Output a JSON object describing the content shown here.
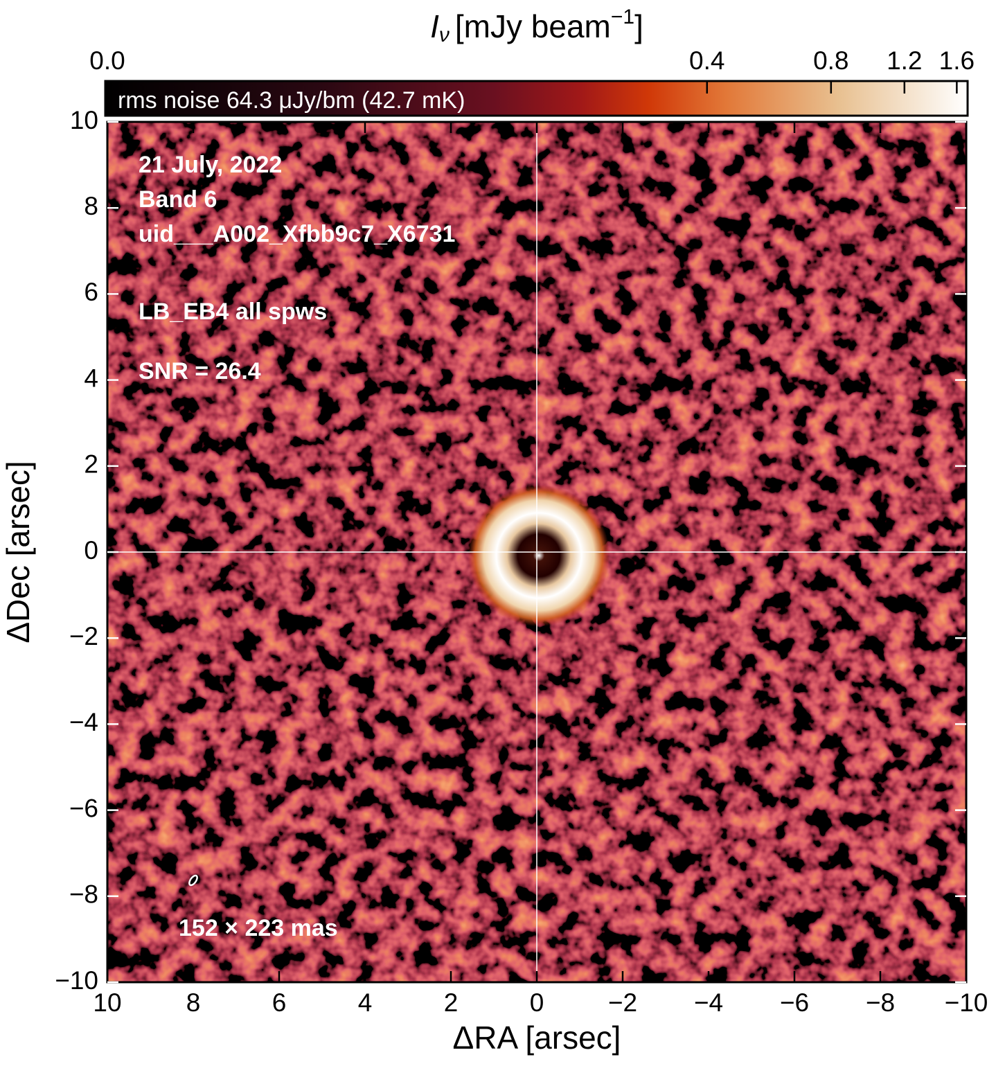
{
  "chart_data": {
    "type": "image",
    "colorbar_title": {
      "symbol": "I",
      "subscript": "ν",
      "unit": "[mJy beam",
      "superscript": "−1",
      "close": "]"
    },
    "colorbar_label": "rms noise 64.3 μJy/bm (42.7 mK)",
    "clim": [
      0,
      1.685
    ],
    "cscale": "log",
    "cticks": [
      {
        "value": 0,
        "label": "0.0"
      },
      0.4,
      0.8,
      1.2,
      1.6
    ],
    "xlabel": "ΔRA [arsec]",
    "ylabel": "ΔDec [arsec]",
    "xlim": [
      10,
      -10
    ],
    "ylim": [
      -10,
      10
    ],
    "xticks": [
      10,
      8,
      6,
      4,
      2,
      0,
      {
        "value": -2,
        "label": "−2"
      },
      {
        "value": -4,
        "label": "−4"
      },
      {
        "value": -6,
        "label": "−6"
      },
      {
        "value": -8,
        "label": "−8"
      },
      {
        "value": -10,
        "label": "−10"
      }
    ],
    "yticks": [
      {
        "value": -10,
        "label": "−10"
      },
      {
        "value": -8,
        "label": "−8"
      },
      {
        "value": -6,
        "label": "−6"
      },
      {
        "value": -4,
        "label": "−4"
      },
      {
        "value": -2,
        "label": "−2"
      },
      0,
      2,
      4,
      6,
      8,
      10
    ],
    "annotations": {
      "date": "21 July, 2022",
      "band": "Band 6",
      "uid": "uid___A002_Xfbb9c7_X6731",
      "name": "LB_EB4 all spws",
      "snr": "SNR = 26.4",
      "beam": "152 × 223 mas"
    }
  }
}
